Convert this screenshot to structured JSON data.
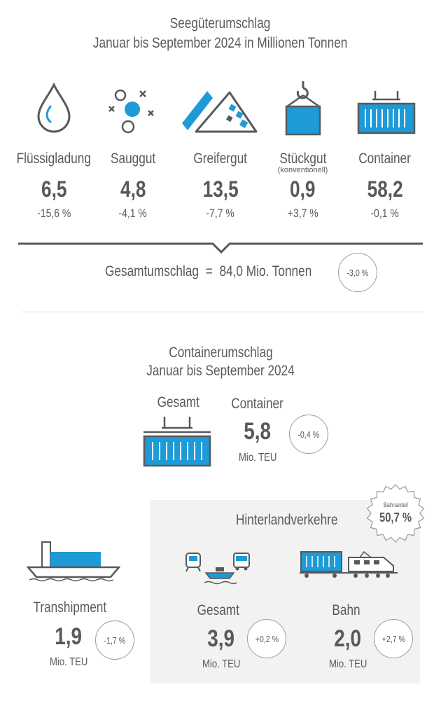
{
  "seegueter": {
    "title_line1": "Seegüterumschlag",
    "title_line2": "Januar bis September 2024 in Millionen Tonnen",
    "categories": [
      {
        "label": "Flüssigladung",
        "value": "6,5",
        "change": "-15,6 %",
        "icon": "liquid-drop-icon"
      },
      {
        "label": "Sauggut",
        "value": "4,8",
        "change": "-4,1 %",
        "icon": "suction-goods-icon"
      },
      {
        "label": "Greifergut",
        "value": "13,5",
        "change": "-7,7 %",
        "icon": "bulk-goods-icon"
      },
      {
        "label": "Stückgut",
        "sublabel": "(konventionell)",
        "value": "0,9",
        "change": "+3,7 %",
        "icon": "crane-hook-icon"
      },
      {
        "label": "Container",
        "value": "58,2",
        "change": "-0,1 %",
        "icon": "container-icon"
      }
    ],
    "total_label": "Gesamtumschlag",
    "total_equals": "=",
    "total_value": "84,0 Mio. Tonnen",
    "total_change": "-3,0 %"
  },
  "container": {
    "title_line1": "Containerumschlag",
    "title_line2": "Januar bis September 2024",
    "gesamt_label": "Gesamt",
    "container_label": "Container",
    "value": "5,8",
    "unit": "Mio. TEU",
    "change": "-0,4 %"
  },
  "transhipment": {
    "label": "Transhipment",
    "value": "1,9",
    "unit": "Mio. TEU",
    "change": "-1,7 %"
  },
  "hinterland": {
    "title": "Hinterlandverkehre",
    "badge_label": "Bahnanteil",
    "badge_value": "50,7 %",
    "gesamt": {
      "label": "Gesamt",
      "value": "3,9",
      "unit": "Mio. TEU",
      "change": "+0,2 %"
    },
    "bahn": {
      "label": "Bahn",
      "value": "2,0",
      "unit": "Mio. TEU",
      "change": "+2,7 %"
    }
  },
  "colors": {
    "accent": "#1e9ad6",
    "outline": "#58595b",
    "panel": "#f2f2f2"
  }
}
